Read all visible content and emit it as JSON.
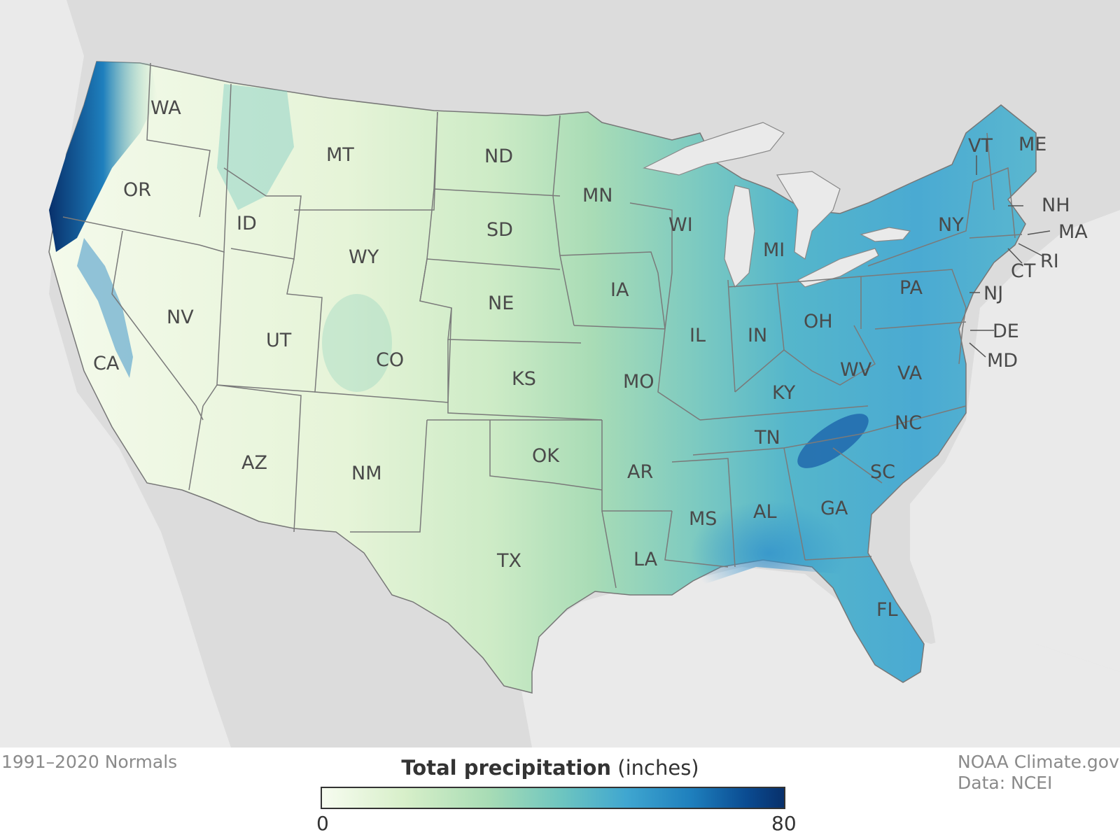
{
  "map": {
    "states": [
      {
        "abbr": "WA"
      },
      {
        "abbr": "OR"
      },
      {
        "abbr": "CA"
      },
      {
        "abbr": "ID"
      },
      {
        "abbr": "NV"
      },
      {
        "abbr": "MT"
      },
      {
        "abbr": "WY"
      },
      {
        "abbr": "UT"
      },
      {
        "abbr": "AZ"
      },
      {
        "abbr": "CO"
      },
      {
        "abbr": "NM"
      },
      {
        "abbr": "ND"
      },
      {
        "abbr": "SD"
      },
      {
        "abbr": "NE"
      },
      {
        "abbr": "KS"
      },
      {
        "abbr": "OK"
      },
      {
        "abbr": "TX"
      },
      {
        "abbr": "MN"
      },
      {
        "abbr": "IA"
      },
      {
        "abbr": "MO"
      },
      {
        "abbr": "AR"
      },
      {
        "abbr": "LA"
      },
      {
        "abbr": "WI"
      },
      {
        "abbr": "IL"
      },
      {
        "abbr": "MI"
      },
      {
        "abbr": "IN"
      },
      {
        "abbr": "OH"
      },
      {
        "abbr": "KY"
      },
      {
        "abbr": "TN"
      },
      {
        "abbr": "MS"
      },
      {
        "abbr": "AL"
      },
      {
        "abbr": "GA"
      },
      {
        "abbr": "FL"
      },
      {
        "abbr": "SC"
      },
      {
        "abbr": "NC"
      },
      {
        "abbr": "VA"
      },
      {
        "abbr": "WV"
      },
      {
        "abbr": "PA"
      },
      {
        "abbr": "NY"
      },
      {
        "abbr": "VT"
      },
      {
        "abbr": "ME"
      },
      {
        "abbr": "NH"
      },
      {
        "abbr": "MA"
      },
      {
        "abbr": "RI"
      },
      {
        "abbr": "CT"
      },
      {
        "abbr": "NJ"
      },
      {
        "abbr": "DE"
      },
      {
        "abbr": "MD"
      }
    ]
  },
  "footer": {
    "period": "1991–2020 Normals",
    "credit_line1": "NOAA Climate.gov",
    "credit_line2": "Data: NCEI"
  },
  "legend": {
    "title_bold": "Total precipitation",
    "title_unit": "(inches)",
    "min_label": "0",
    "max_label": "80",
    "min": 0,
    "max": 80
  },
  "colors": {
    "background_land": "#dcdcdc",
    "water": "#eaeaea",
    "low": "#f7fcf0",
    "high": "#08306b"
  }
}
